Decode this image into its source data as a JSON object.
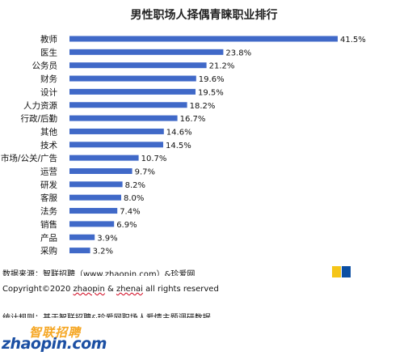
{
  "chart_data": {
    "type": "bar",
    "orientation": "horizontal",
    "title": "男性职场人择偶青睐职业排行",
    "categories": [
      "教师",
      "医生",
      "公务员",
      "财务",
      "设计",
      "人力资源",
      "行政/后勤",
      "其他",
      "技术",
      "市场/公关/广告",
      "运营",
      "研发",
      "客服",
      "法务",
      "销售",
      "产品",
      "采购"
    ],
    "values": [
      41.5,
      23.8,
      21.2,
      19.6,
      19.5,
      18.2,
      16.7,
      14.6,
      14.5,
      10.7,
      9.7,
      8.2,
      8.0,
      7.4,
      6.9,
      3.9,
      3.2
    ],
    "value_labels": [
      "41.5%",
      "23.8%",
      "21.2%",
      "19.6%",
      "19.5%",
      "18.2%",
      "16.7%",
      "14.6%",
      "14.5%",
      "10.7%",
      "9.7%",
      "8.2%",
      "8.0%",
      "7.4%",
      "6.9%",
      "3.9%",
      "3.2%"
    ],
    "unit": "%",
    "grid": false,
    "legend": "none",
    "bar_color": "#4069c8"
  },
  "footer": {
    "source": "数据来源：智联招聘（www.zhaopin.com）&珍爱网",
    "copyright_prefix": "Copyright©2020 ",
    "copyright_brand1": "zhaopin",
    "copyright_amp": " & ",
    "copyright_brand2": "zhenai",
    "copyright_suffix": "  all rights reserved",
    "basis": "统计规则：基于智联招聘&珍爱网职场人爱情主题调研数据"
  },
  "colors": {
    "yellow": "#f5c518",
    "blue": "#0b4ea2"
  },
  "logo": {
    "cn": "智联招聘",
    "en": "zhaopin.com"
  }
}
